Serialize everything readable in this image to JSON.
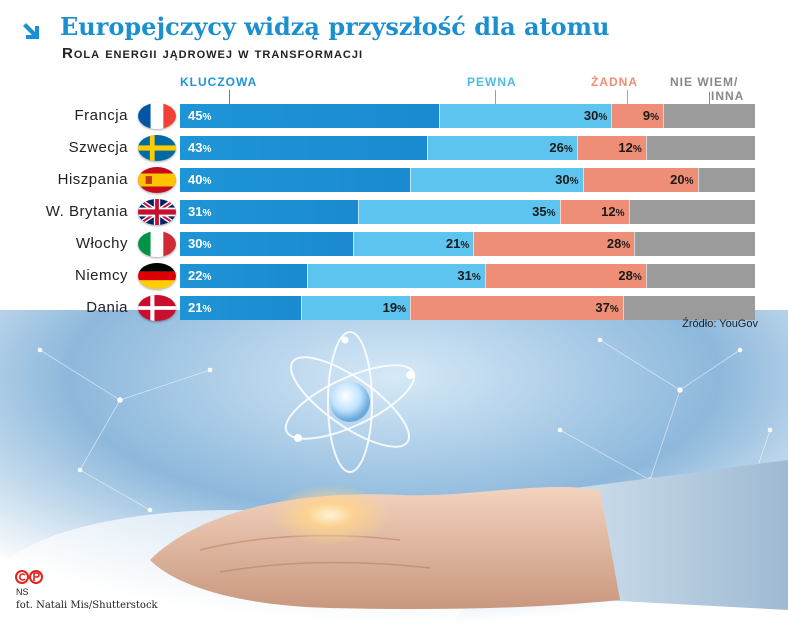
{
  "title": "Europejczycy widzą przyszłość dla atomu",
  "subtitle": "Rola energii jądrowej w transformacji",
  "chart_data": {
    "type": "bar",
    "stacked": true,
    "orientation": "horizontal",
    "title": "Europejczycy widzą przyszłość dla atomu",
    "subtitle": "Rola energii jądrowej w transformacji",
    "categories": [
      "Francja",
      "Szwecja",
      "Hiszpania",
      "W. Brytania",
      "Włochy",
      "Niemcy",
      "Dania"
    ],
    "series": [
      {
        "name": "KLUCZOWA",
        "color": "#1e95d6",
        "values": [
          45,
          43,
          40,
          31,
          30,
          22,
          21
        ]
      },
      {
        "name": "PEWNA",
        "color": "#5cc4ee",
        "values": [
          30,
          26,
          30,
          35,
          21,
          31,
          19
        ]
      },
      {
        "name": "ŻADNA",
        "color": "#ef8e76",
        "values": [
          9,
          12,
          20,
          12,
          28,
          28,
          37
        ]
      },
      {
        "name": "NIE WIEM/ INNA",
        "color": "#9b9b9b",
        "values": [
          16,
          19,
          10,
          22,
          21,
          19,
          23
        ]
      }
    ],
    "xlim": [
      0,
      100
    ],
    "legend_position": "top",
    "grid": false
  },
  "legend_colors": {
    "KLUCZOWA": "#1e95d6",
    "PEWNA": "#5cc4ee",
    "ŻADNA": "#ef8e76",
    "NIE WIEM/ INNA": "#888888"
  },
  "legend_text": {
    "kluczowa": "KLUCZOWA",
    "pewna": "PEWNA",
    "zadna": "ŻADNA",
    "niewiem_line1": "NIE WIEM/",
    "niewiem_line2": "INNA"
  },
  "flags": [
    "france-flag-icon",
    "sweden-flag-icon",
    "spain-flag-icon",
    "uk-flag-icon",
    "italy-flag-icon",
    "germany-flag-icon",
    "denmark-flag-icon"
  ],
  "percent_sign": "%",
  "source": "Źródło: YouGov",
  "credits": {
    "ns": "NS",
    "photo": "fot. Natali Mis/Shutterstock"
  }
}
